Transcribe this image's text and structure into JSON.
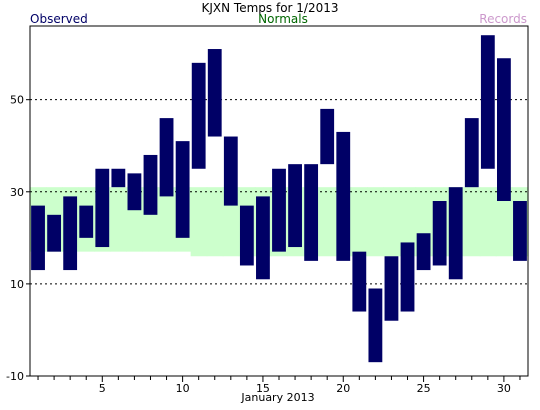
{
  "chart_data": {
    "type": "bar",
    "title": "KJXN Temps for 1/2013",
    "xlabel": "January 2013",
    "ylabel": "",
    "legend": [
      {
        "name": "Observed",
        "color": "#000066",
        "placement": "top-left"
      },
      {
        "name": "Normals",
        "color": "#006600",
        "placement": "top-center"
      },
      {
        "name": "Records",
        "color": "#cc99cc",
        "placement": "top-right"
      }
    ],
    "colors": {
      "observed": "#000066",
      "normals_fill": "#ccffcc",
      "grid": "#000000"
    },
    "xlim": [
      0.5,
      31.5
    ],
    "ylim": [
      -10,
      66
    ],
    "x_ticks": [
      5,
      10,
      15,
      20,
      25,
      30
    ],
    "y_ticks": [
      -10,
      10,
      30,
      50
    ],
    "grid": {
      "y_dashed": [
        10,
        30,
        50
      ]
    },
    "days": [
      1,
      2,
      3,
      4,
      5,
      6,
      7,
      8,
      9,
      10,
      11,
      12,
      13,
      14,
      15,
      16,
      17,
      18,
      19,
      20,
      21,
      22,
      23,
      24,
      25,
      26,
      27,
      28,
      29,
      30,
      31
    ],
    "observed_high": [
      27,
      25,
      29,
      27,
      35,
      35,
      34,
      38,
      46,
      41,
      58,
      61,
      42,
      27,
      29,
      35,
      36,
      36,
      48,
      43,
      17,
      9,
      16,
      19,
      21,
      28,
      31,
      46,
      64,
      59,
      28
    ],
    "observed_low": [
      13,
      17,
      13,
      20,
      18,
      31,
      26,
      25,
      29,
      20,
      35,
      42,
      27,
      14,
      11,
      17,
      18,
      15,
      36,
      15,
      4,
      -7,
      2,
      4,
      13,
      14,
      11,
      31,
      35,
      28,
      15
    ],
    "normal_high": [
      31,
      31,
      31,
      31,
      31,
      31,
      31,
      31,
      31,
      31,
      31,
      31,
      31,
      31,
      31,
      31,
      31,
      31,
      31,
      31,
      31,
      31,
      31,
      31,
      31,
      31,
      31,
      31,
      31,
      31,
      31
    ],
    "normal_low": [
      17,
      17,
      17,
      17,
      17,
      17,
      17,
      17,
      17,
      17,
      16,
      16,
      16,
      16,
      16,
      16,
      16,
      16,
      16,
      16,
      16,
      16,
      16,
      16,
      16,
      16,
      16,
      16,
      16,
      16,
      16
    ]
  }
}
